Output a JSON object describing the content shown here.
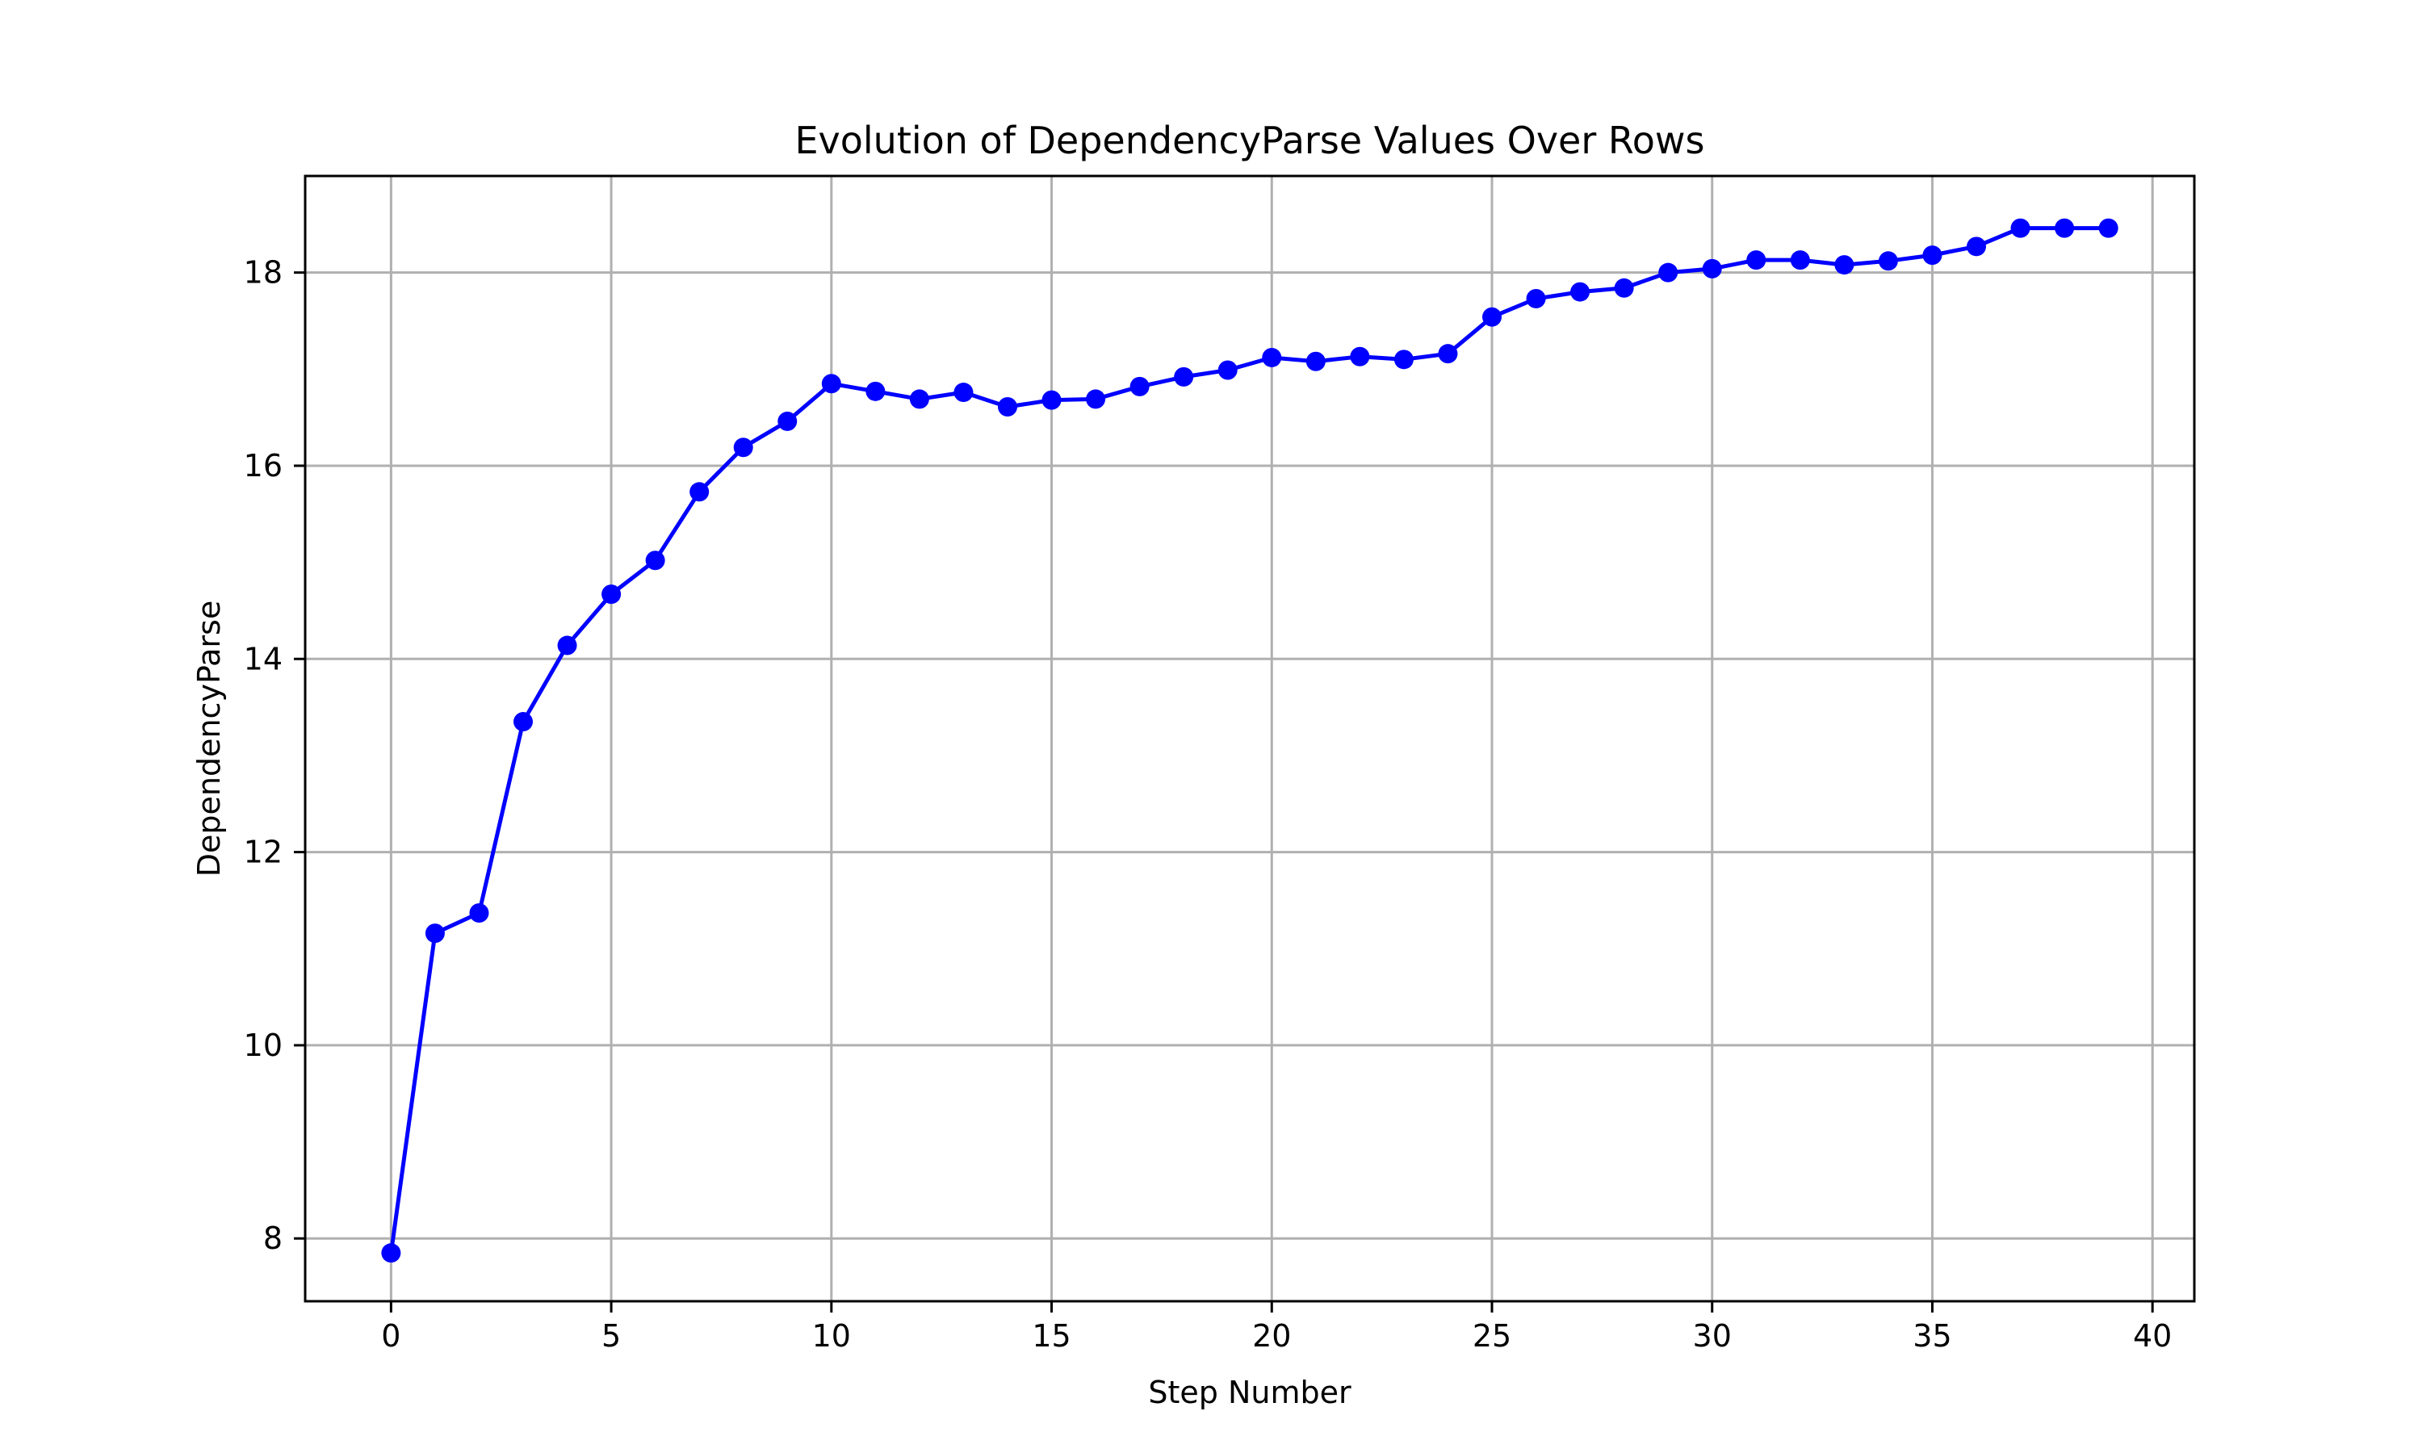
{
  "chart_data": {
    "type": "line",
    "title": "Evolution of DependencyParse Values Over Rows",
    "xlabel": "Step Number",
    "ylabel": "DependencyParse",
    "xlim": [
      -1.95,
      40.95
    ],
    "ylim": [
      7.35,
      19.0
    ],
    "xticks": [
      0,
      5,
      10,
      15,
      20,
      25,
      30,
      35,
      40
    ],
    "yticks": [
      8,
      10,
      12,
      14,
      16,
      18
    ],
    "grid": true,
    "line_color": "#0000ff",
    "marker": "circle",
    "series": [
      {
        "x": [
          0,
          1,
          2,
          3,
          4,
          5,
          6,
          7,
          8,
          9,
          10,
          11,
          12,
          13,
          14,
          15,
          16,
          17,
          18,
          19,
          20,
          21,
          22,
          23,
          24,
          25,
          26,
          27,
          28,
          29,
          30,
          31,
          32,
          33,
          34,
          35,
          36,
          37,
          38,
          39
        ],
        "values": [
          7.85,
          11.16,
          11.37,
          13.35,
          14.14,
          14.67,
          15.02,
          15.73,
          16.19,
          16.46,
          16.85,
          16.77,
          16.69,
          16.76,
          16.61,
          16.68,
          16.69,
          16.82,
          16.92,
          16.99,
          17.12,
          17.08,
          17.13,
          17.1,
          17.16,
          17.54,
          17.73,
          17.8,
          17.84,
          18.0,
          18.04,
          18.13,
          18.13,
          18.08,
          18.12,
          18.18,
          18.27,
          18.46,
          18.46,
          18.46
        ]
      }
    ]
  }
}
